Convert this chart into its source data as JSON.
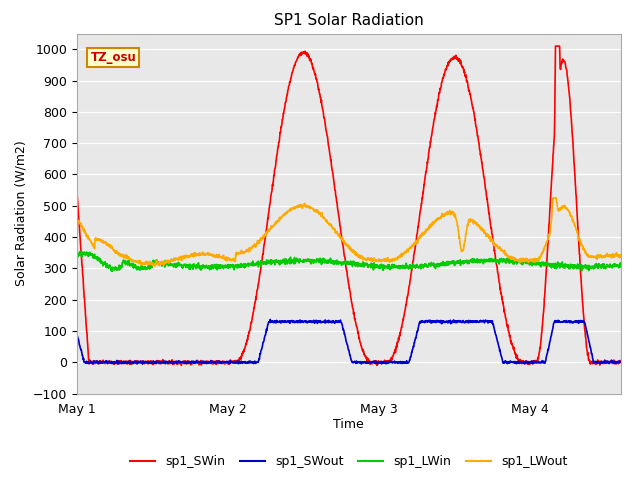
{
  "title": "SP1 Solar Radiation",
  "ylabel": "Solar Radiation (W/m2)",
  "xlabel": "Time",
  "xlim": [
    0,
    3.6
  ],
  "ylim": [
    -100,
    1050
  ],
  "yticks": [
    -100,
    0,
    100,
    200,
    300,
    400,
    500,
    600,
    700,
    800,
    900,
    1000
  ],
  "xtick_positions": [
    0,
    1,
    2,
    3
  ],
  "xtick_labels": [
    "May 1",
    "May 2",
    "May 3",
    "May 4"
  ],
  "colors": {
    "sp1_SWin": "#ff0000",
    "sp1_SWout": "#0000cc",
    "sp1_LWin": "#00cc00",
    "sp1_LWout": "#ffaa00"
  },
  "bg_color": "#e8e8e8",
  "annotation_text": "TZ_osu",
  "annotation_bg": "#ffffcc",
  "annotation_border": "#cc8800"
}
